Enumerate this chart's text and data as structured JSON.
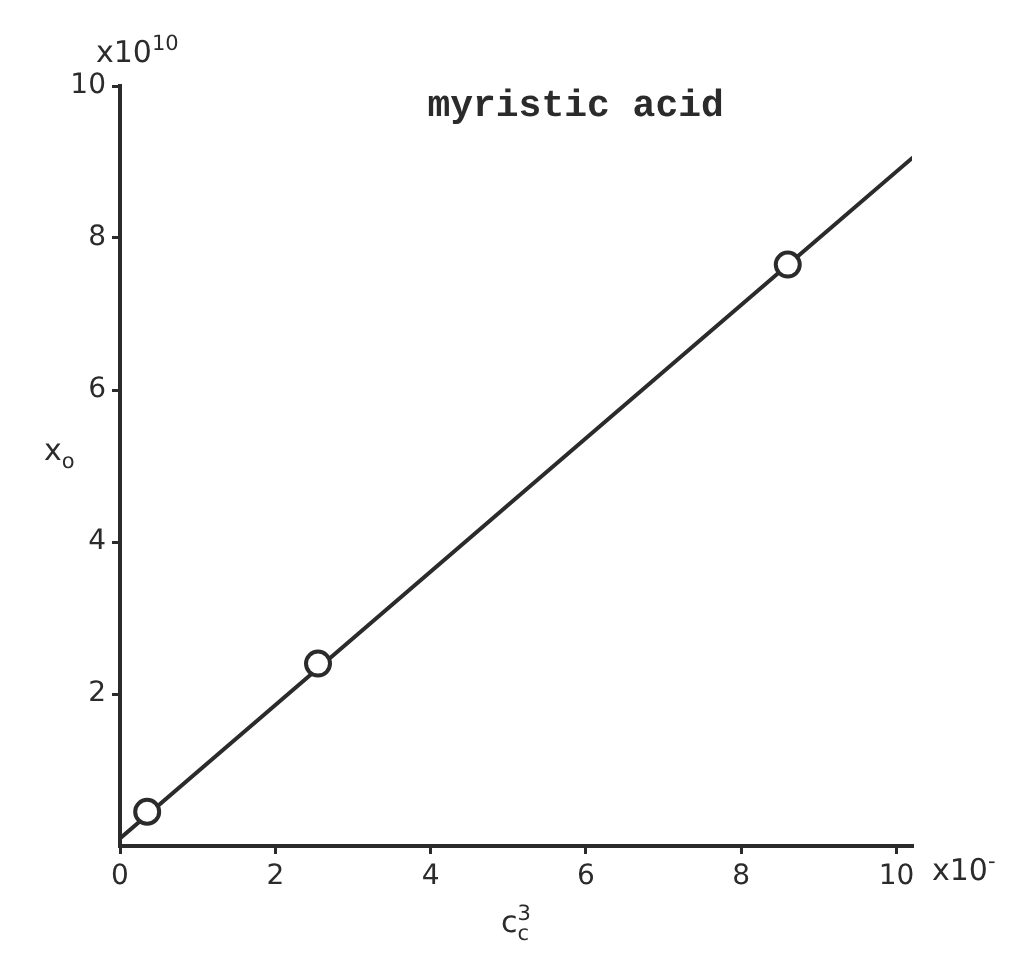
{
  "chart_data": {
    "type": "scatter",
    "title": "myristic acid",
    "xlabel": "c$_{c}$$^{3}$",
    "ylabel": "x$_{o}$",
    "annotations": [
      "x10$^{10}$",
      "x10$^{-}$"
    ],
    "series": [
      {
        "type": "scatter",
        "color": "#2b2b2b",
        "marker": "circle",
        "x": [
          0.35,
          2.55,
          8.6
        ],
        "values": [
          0.45,
          2.4,
          7.65
        ]
      },
      {
        "type": "line",
        "color": "#2b2b2b",
        "marker": "none",
        "x": [
          0,
          10.2
        ],
        "values": [
          0.1,
          9.05
        ]
      }
    ],
    "xlim": [
      0,
      10.2
    ],
    "ylim": [
      0,
      10
    ],
    "xticks": [
      0,
      2,
      4,
      6,
      8,
      10
    ],
    "yticks": [
      2,
      4,
      6,
      8,
      10
    ]
  }
}
